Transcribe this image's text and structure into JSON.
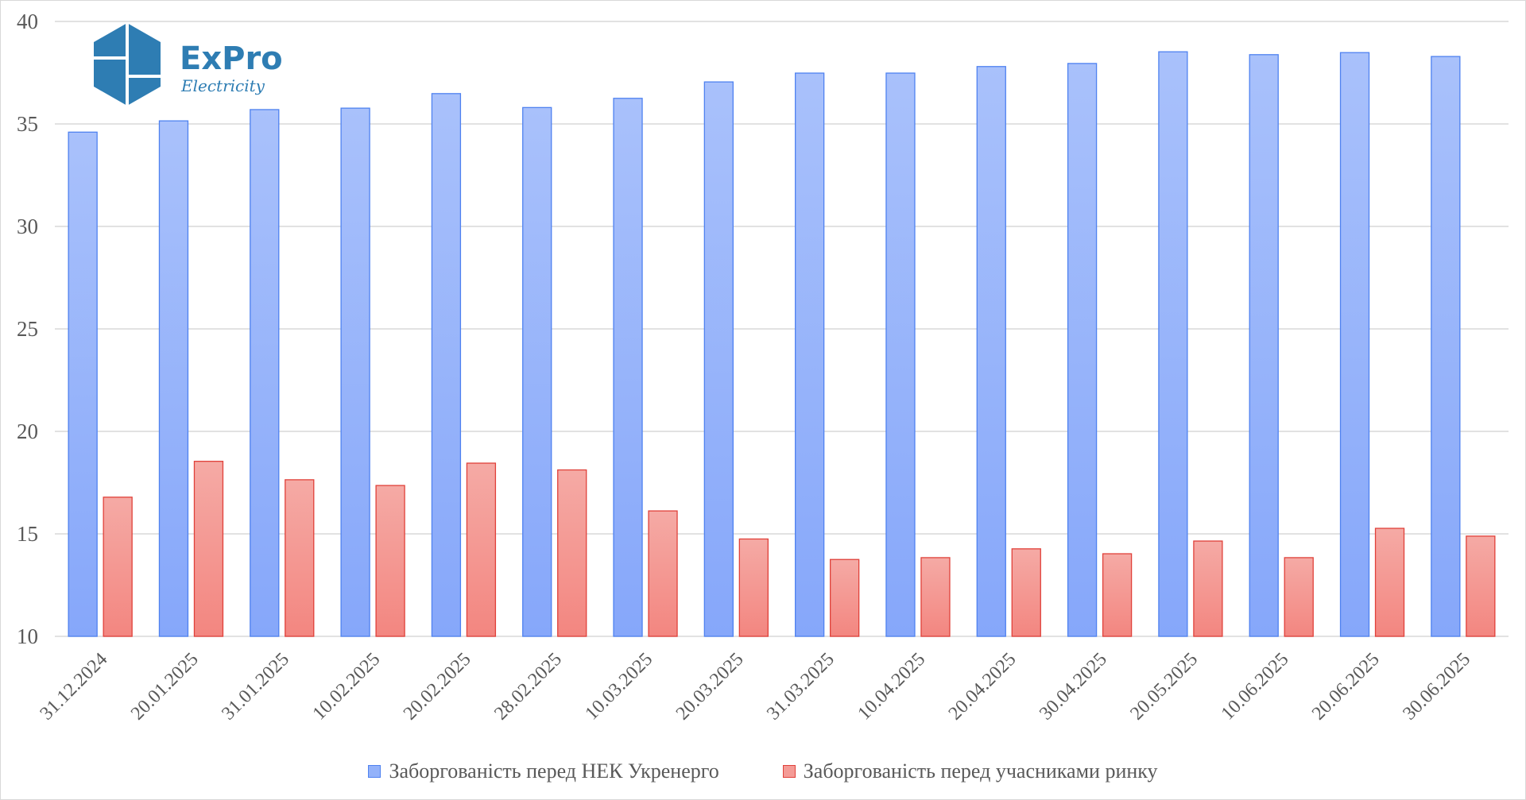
{
  "logo": {
    "name": "ExPro",
    "tagline": "Electricity"
  },
  "chart_data": {
    "type": "bar",
    "title": "",
    "xlabel": "",
    "ylabel": "",
    "ylim": [
      10,
      40
    ],
    "yticks": [
      10,
      15,
      20,
      25,
      30,
      35,
      40
    ],
    "grid": true,
    "legend_position": "bottom",
    "categories": [
      "31.12.2024",
      "20.01.2025",
      "31.01.2025",
      "10.02.2025",
      "20.02.2025",
      "28.02.2025",
      "10.03.2025",
      "20.03.2025",
      "31.03.2025",
      "10.04.2025",
      "20.04.2025",
      "30.04.2025",
      "20.05.2025",
      "10.06.2025",
      "20.06.2025",
      "30.06.2025"
    ],
    "series": [
      {
        "name": "Заборгованість перед НЕК Укренерго",
        "color": "#7fa6f8",
        "values": [
          34.6,
          35.15,
          35.7,
          35.77,
          36.48,
          35.8,
          36.25,
          37.05,
          37.48,
          37.48,
          37.8,
          37.95,
          38.52,
          38.38,
          38.48,
          38.29
        ]
      },
      {
        "name": "Заборгованість перед учасниками ринку",
        "color": "#f08a84",
        "values": [
          16.79,
          18.54,
          17.64,
          17.36,
          18.45,
          18.12,
          16.12,
          14.75,
          13.75,
          13.84,
          14.27,
          14.03,
          14.65,
          13.84,
          15.27,
          14.89
        ]
      }
    ]
  }
}
